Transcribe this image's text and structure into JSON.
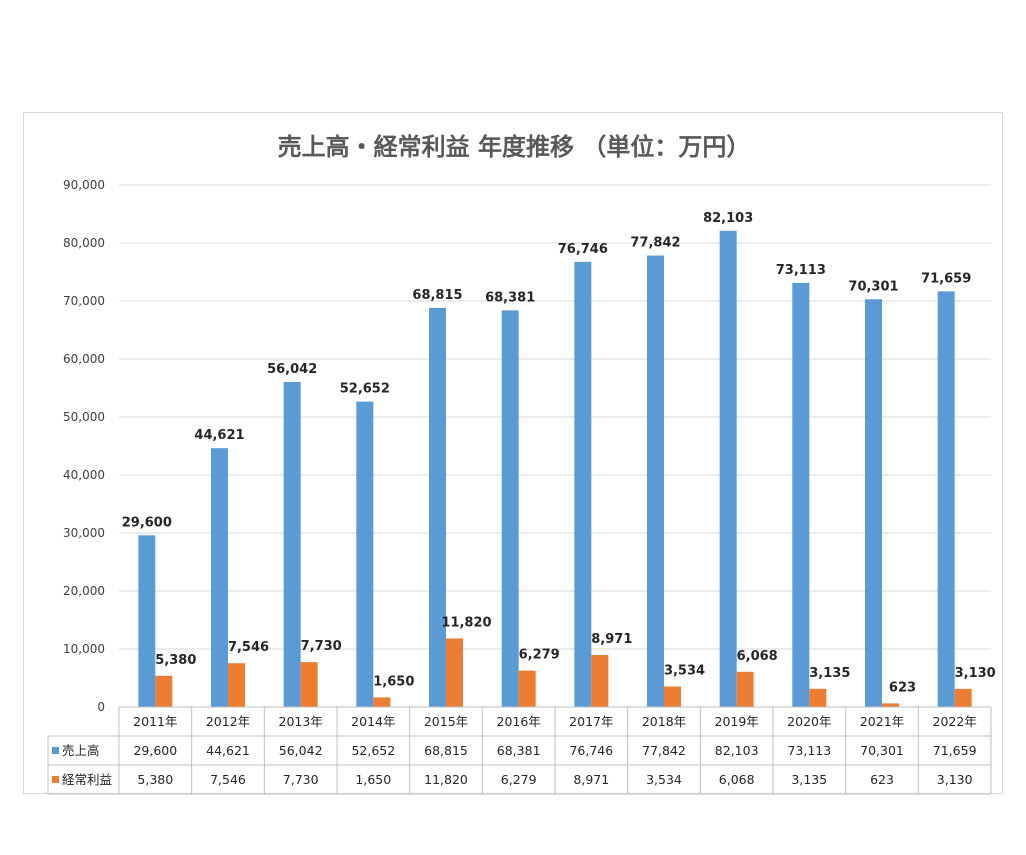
{
  "chart_data": {
    "type": "bar",
    "title": "売上高・経常利益 年度推移 （単位：万円）",
    "categories": [
      "2011年",
      "2012年",
      "2013年",
      "2014年",
      "2015年",
      "2016年",
      "2017年",
      "2018年",
      "2019年",
      "2020年",
      "2021年",
      "2022年"
    ],
    "series": [
      {
        "name": "売上高",
        "color": "#5b9bd5",
        "values": [
          29600,
          44621,
          56042,
          52652,
          68815,
          68381,
          76746,
          77842,
          82103,
          73113,
          70301,
          71659
        ],
        "labels": [
          "29,600",
          "44,621",
          "56,042",
          "52,652",
          "68,815",
          "68,381",
          "76,746",
          "77,842",
          "82,103",
          "73,113",
          "70,301",
          "71,659"
        ]
      },
      {
        "name": "経常利益",
        "color": "#ed7d31",
        "values": [
          5380,
          7546,
          7730,
          1650,
          11820,
          6279,
          8971,
          3534,
          6068,
          3135,
          623,
          3130
        ],
        "labels": [
          "5,380",
          "7,546",
          "7,730",
          "1,650",
          "11,820",
          "6,279",
          "8,971",
          "3,534",
          "6,068",
          "3,135",
          "623",
          "3,130"
        ]
      }
    ],
    "ylim": [
      0,
      90000
    ],
    "yticks": [
      "0",
      "10,000",
      "20,000",
      "30,000",
      "40,000",
      "50,000",
      "60,000",
      "70,000",
      "80,000",
      "90,000"
    ],
    "grid": true,
    "legend": "data-table"
  }
}
